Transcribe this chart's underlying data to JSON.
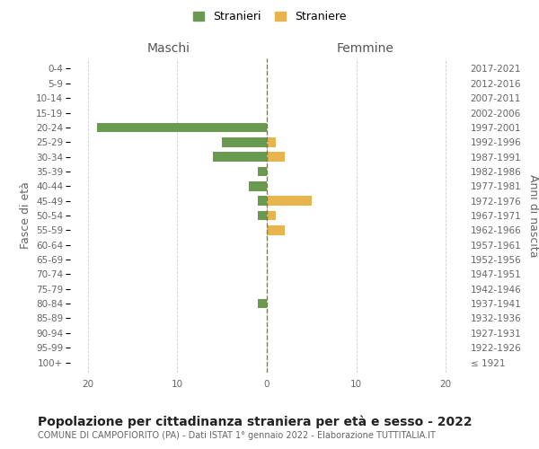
{
  "age_groups": [
    "100+",
    "95-99",
    "90-94",
    "85-89",
    "80-84",
    "75-79",
    "70-74",
    "65-69",
    "60-64",
    "55-59",
    "50-54",
    "45-49",
    "40-44",
    "35-39",
    "30-34",
    "25-29",
    "20-24",
    "15-19",
    "10-14",
    "5-9",
    "0-4"
  ],
  "birth_years": [
    "≤ 1921",
    "1922-1926",
    "1927-1931",
    "1932-1936",
    "1937-1941",
    "1942-1946",
    "1947-1951",
    "1952-1956",
    "1957-1961",
    "1962-1966",
    "1967-1971",
    "1972-1976",
    "1977-1981",
    "1982-1986",
    "1987-1991",
    "1992-1996",
    "1997-2001",
    "2002-2006",
    "2007-2011",
    "2012-2016",
    "2017-2021"
  ],
  "maschi_stranieri": [
    0,
    0,
    0,
    0,
    1,
    0,
    0,
    0,
    0,
    0,
    1,
    1,
    2,
    1,
    6,
    5,
    19,
    0,
    0,
    0,
    0
  ],
  "femmine_straniere": [
    0,
    0,
    0,
    0,
    0,
    0,
    0,
    0,
    0,
    2,
    1,
    5,
    0,
    0,
    2,
    1,
    0,
    0,
    0,
    0,
    0
  ],
  "color_maschi": "#6a9a50",
  "color_femmine": "#e8b44e",
  "xlim": 22,
  "title": "Popolazione per cittadinanza straniera per età e sesso - 2022",
  "subtitle": "COMUNE DI CAMPOFIORITO (PA) - Dati ISTAT 1° gennaio 2022 - Elaborazione TUTTITALIA.IT",
  "ylabel_left": "Fasce di età",
  "ylabel_right": "Anni di nascita",
  "legend_stranieri": "Stranieri",
  "legend_straniere": "Straniere",
  "label_maschi": "Maschi",
  "label_femmine": "Femmine",
  "bg_color": "#ffffff",
  "grid_color": "#cccccc",
  "axis_center_color": "#808040",
  "tick_fontsize": 7.5,
  "label_fontsize": 9,
  "title_fontsize": 10,
  "subtitle_fontsize": 7.0
}
